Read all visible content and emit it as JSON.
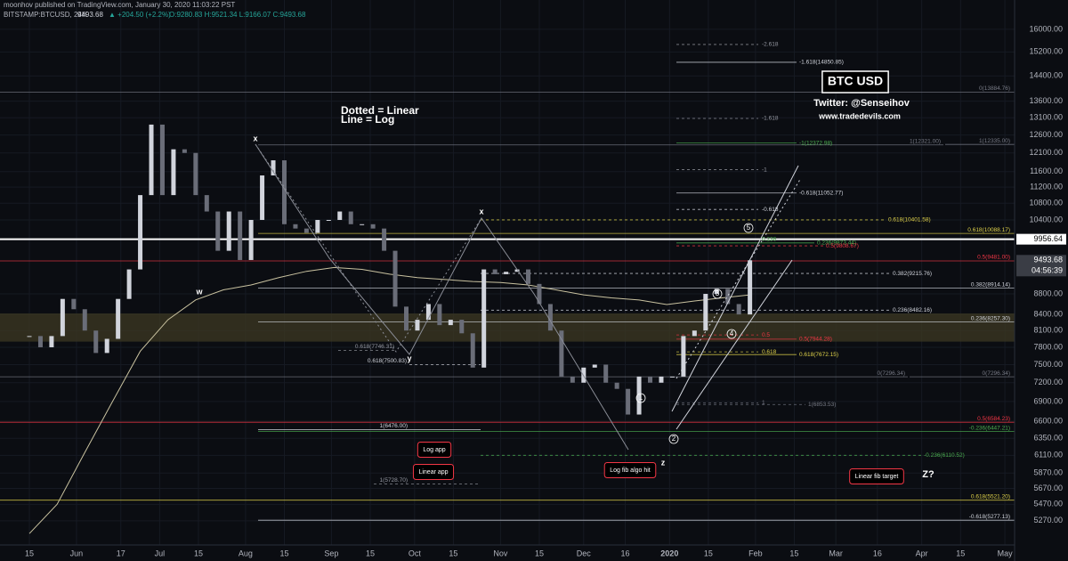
{
  "header": {
    "line1": "moonhov published on TradingView.com, January 30, 2020 11:03:22 PST",
    "symbol": "BITSTAMP:BTCUSD, 24H",
    "change": "▲ +204.50 (+2.2%)",
    "ohlc": "O:9280.83 H:9521.34 L:9166.07 C:9493.68"
  },
  "chart_data": {
    "type": "candlestick",
    "log_scale": true,
    "grid": true,
    "up_color": "#d1d4dc",
    "down_color": "#6a6d78",
    "ylim": [
      4930,
      16420
    ],
    "xlim": [
      -10.6,
      355.5
    ],
    "x": [
      0,
      4,
      8,
      12,
      16,
      20,
      24,
      28,
      32,
      36,
      40,
      44,
      48,
      52,
      56,
      60,
      64,
      68,
      72,
      76,
      80,
      84,
      88,
      92,
      96,
      100,
      104,
      108,
      112,
      116,
      120,
      124,
      128,
      132,
      136,
      140,
      144,
      148,
      152,
      156,
      160,
      164,
      168,
      172,
      176,
      180,
      184,
      188,
      192,
      196,
      200,
      204,
      208,
      212,
      216,
      220,
      224,
      228,
      232,
      236,
      240,
      244,
      248,
      252,
      256,
      260
    ],
    "values": [
      8000,
      7800,
      8000,
      8700,
      8500,
      8100,
      7700,
      7950,
      8700,
      9300,
      11000,
      12900,
      11000,
      12200,
      12100,
      11000,
      10600,
      9700,
      10600,
      9500,
      10400,
      11500,
      11900,
      10300,
      10200,
      10100,
      10400,
      10400,
      10600,
      10300,
      10300,
      10200,
      9700,
      8550,
      8100,
      8300,
      8600,
      8200,
      8300,
      8050,
      7450,
      9300,
      9200,
      9250,
      9300,
      9000,
      8600,
      8100,
      7300,
      7200,
      7450,
      7500,
      7200,
      7100,
      6700,
      7300,
      7200,
      7300,
      7300,
      8000,
      8100,
      8800,
      8900,
      8600,
      8400,
      9493.68
    ],
    "countdown": "04:56:39",
    "ma": {
      "color": "#c9c2a0",
      "x": [
        0,
        10,
        20,
        30,
        40,
        50,
        60,
        70,
        80,
        90,
        100,
        110,
        120,
        130,
        140,
        150,
        160,
        170,
        180,
        190,
        200,
        210,
        220,
        230,
        240,
        250,
        260
      ],
      "values": [
        5120,
        5470,
        6150,
        6900,
        7730,
        8300,
        8680,
        8880,
        8980,
        9130,
        9260,
        9340,
        9300,
        9200,
        9130,
        9090,
        9050,
        9030,
        8980,
        8880,
        8780,
        8720,
        8680,
        8590,
        8660,
        8720,
        8780
      ]
    },
    "zone": {
      "from": 7900,
      "to": 8420,
      "color": "#3a3622"
    },
    "marked_line": {
      "value": 9956.64,
      "label": "9956.64"
    },
    "yticks": [
      {
        "value": 16000,
        "label": "16000.00"
      },
      {
        "value": 15200,
        "label": "15200.00"
      },
      {
        "value": 14400,
        "label": "14400.00"
      },
      {
        "value": 13600,
        "label": "13600.00"
      },
      {
        "value": 13100,
        "label": "13100.00"
      },
      {
        "value": 12600,
        "label": "12600.00"
      },
      {
        "value": 12100,
        "label": "12100.00"
      },
      {
        "value": 11600,
        "label": "11600.00"
      },
      {
        "value": 11200,
        "label": "11200.00"
      },
      {
        "value": 10800,
        "label": "10800.00"
      },
      {
        "value": 10400,
        "label": "10400.00"
      },
      {
        "value": 8800,
        "label": "8800.00"
      },
      {
        "value": 8400,
        "label": "8400.00"
      },
      {
        "value": 8100,
        "label": "8100.00"
      },
      {
        "value": 7800,
        "label": "7800.00"
      },
      {
        "value": 7500,
        "label": "7500.00"
      },
      {
        "value": 7200,
        "label": "7200.00"
      },
      {
        "value": 6900,
        "label": "6900.00"
      },
      {
        "value": 6600,
        "label": "6600.00"
      },
      {
        "value": 6350,
        "label": "6350.00"
      },
      {
        "value": 6110,
        "label": "6110.00"
      },
      {
        "value": 5870,
        "label": "5870.00"
      },
      {
        "value": 5670,
        "label": "5670.00"
      },
      {
        "value": 5470,
        "label": "5470.00"
      },
      {
        "value": 5270,
        "label": "5270.00"
      }
    ],
    "xticks": [
      {
        "value": 0,
        "label": "15"
      },
      {
        "value": 17,
        "label": "Jun"
      },
      {
        "value": 33,
        "label": "17"
      },
      {
        "value": 47,
        "label": "Jul"
      },
      {
        "value": 61,
        "label": "15"
      },
      {
        "value": 78,
        "label": "Aug"
      },
      {
        "value": 92,
        "label": "15"
      },
      {
        "value": 109,
        "label": "Sep"
      },
      {
        "value": 123,
        "label": "15"
      },
      {
        "value": 139,
        "label": "Oct"
      },
      {
        "value": 153,
        "label": "15"
      },
      {
        "value": 170,
        "label": "Nov"
      },
      {
        "value": 184,
        "label": "15"
      },
      {
        "value": 200,
        "label": "Dec"
      },
      {
        "value": 215,
        "label": "16"
      },
      {
        "value": 231,
        "label": "2020"
      },
      {
        "value": 245,
        "label": "15"
      },
      {
        "value": 262,
        "label": "Feb"
      },
      {
        "value": 276,
        "label": "15"
      },
      {
        "value": 291,
        "label": "Mar"
      },
      {
        "value": 306,
        "label": "16"
      },
      {
        "value": 322,
        "label": "Apr"
      },
      {
        "value": 336,
        "label": "15"
      },
      {
        "value": 352,
        "label": "May"
      }
    ],
    "levels": [
      {
        "label": "0(13884.76)",
        "value": 13884.76,
        "color": "#787b86"
      },
      {
        "label": "-2.618",
        "value": 15460,
        "color": "#9598a1"
      },
      {
        "label": "-1.618(14850.85)",
        "value": 14850.85,
        "color": "#d1d4dc"
      },
      {
        "label": "-1.618",
        "value": 13080,
        "color": "#9598a1"
      },
      {
        "label": "-1(12372.98)",
        "value": 12372.98,
        "color": "#4caf50"
      },
      {
        "label": "1(12321.00)",
        "value": 12321,
        "color": "#787b86"
      },
      {
        "label": "1(12335.00)",
        "value": 12335,
        "color": "#787b86"
      },
      {
        "label": "-1",
        "value": 11650,
        "color": "#9598a1"
      },
      {
        "label": "-0.618(11052.77)",
        "value": 11052.77,
        "color": "#d1d4dc"
      },
      {
        "label": "-0.618",
        "value": 10650,
        "color": "#d1d4dc"
      },
      {
        "label": "0.618(10401.58)",
        "value": 10401.58,
        "color": "#e0d34a"
      },
      {
        "label": "0.618(10088.17)",
        "value": 10088.17,
        "color": "#e0d34a"
      },
      {
        "label": "0.236",
        "value": 9950,
        "color": "#4caf50"
      },
      {
        "label": "0.236(9873.44)",
        "value": 9873.44,
        "color": "#4caf50"
      },
      {
        "label": "0.5(9808.67)",
        "value": 9808.67,
        "color": "#f23645"
      },
      {
        "label": "0.5(9481.00)",
        "value": 9481,
        "color": "#f23645"
      },
      {
        "label": "0.382(9215.76)",
        "value": 9215.76,
        "color": "#d1d4dc"
      },
      {
        "label": "0.382(8914.14)",
        "value": 8914.14,
        "color": "#d1d4dc"
      },
      {
        "label": "0.236(8482.16)",
        "value": 8482.16,
        "color": "#d1d4dc"
      },
      {
        "label": "0.236(8257.30)",
        "value": 8257.3,
        "color": "#d1d4dc"
      },
      {
        "label": "0.5",
        "value": 8020,
        "color": "#f23645"
      },
      {
        "label": "0.5(7944.28)",
        "value": 7944.28,
        "color": "#f23645"
      },
      {
        "label": "0.618",
        "value": 7720,
        "color": "#e0d34a"
      },
      {
        "label": "0.618(7672.15)",
        "value": 7672.15,
        "color": "#e0d34a"
      },
      {
        "label": "0(7296.34)",
        "value": 7296.34,
        "color": "#787b86"
      },
      {
        "label": "0(7296.34)",
        "value": 7296.34,
        "color": "#787b86"
      },
      {
        "label": "1",
        "value": 6880,
        "color": "#787b86"
      },
      {
        "label": "1(6853.53)",
        "value": 6853.53,
        "color": "#787b86"
      },
      {
        "label": "0.5(6584.23)",
        "value": 6584.23,
        "color": "#f23645"
      },
      {
        "label": "-0.236(6447.21)",
        "value": 6447.21,
        "color": "#4caf50"
      },
      {
        "label": "-0.236(6110.52)",
        "value": 6110.52,
        "color": "#4caf50"
      },
      {
        "label": "0.618(5521.20)",
        "value": 5521.2,
        "color": "#e0d34a"
      },
      {
        "label": "-0.618(5277.13)",
        "value": 5277.13,
        "color": "#d1d4dc"
      },
      {
        "label": "0.618(7746.31)",
        "value": 7746.31,
        "color": "#9598a1"
      },
      {
        "label": "0.618(7500.83)",
        "value": 7500.83,
        "color": "#d1d4dc"
      },
      {
        "label": "1(6476.00)",
        "value": 6476,
        "color": "#d1d4dc"
      },
      {
        "label": "1(5728.70)",
        "value": 5728.7,
        "color": "#9598a1"
      }
    ],
    "annotations": [
      "Dotted = Linear",
      "Line = Log",
      "BTC USD",
      "Twitter: @Senseihov",
      "www.tradedevils.com",
      "Log app",
      "Linear app",
      "Log fib algo hit",
      "Linear fib target",
      "Z?",
      "x",
      "w",
      "y",
      "x",
      "z",
      "1",
      "2",
      "3",
      "4",
      "5"
    ]
  }
}
